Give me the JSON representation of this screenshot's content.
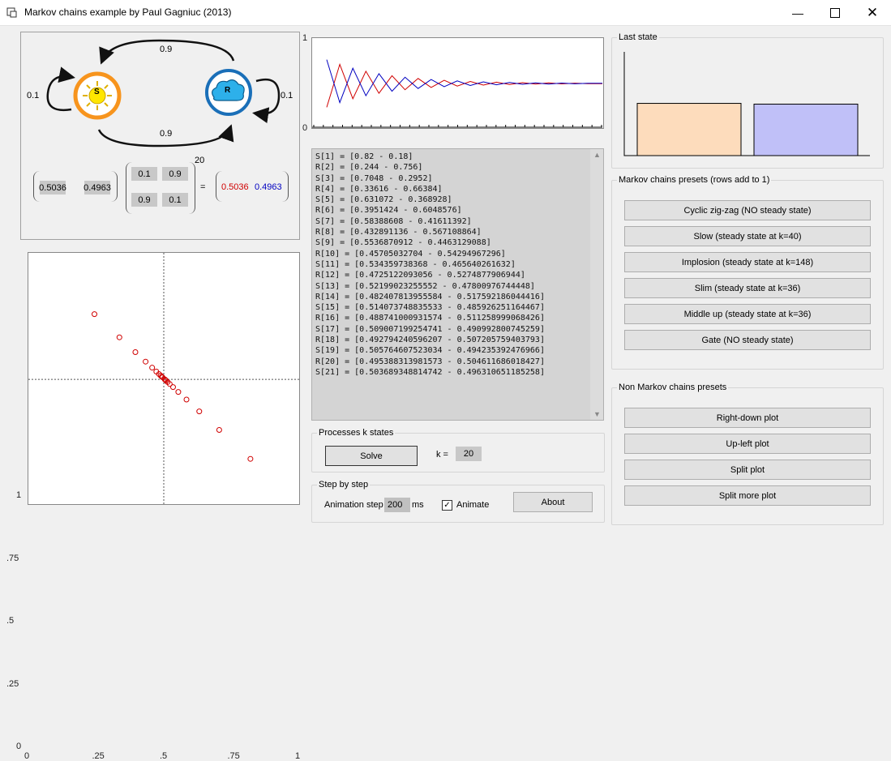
{
  "window": {
    "title": "Markov chains example by Paul Gagniuc (2013)"
  },
  "diagram": {
    "state_s": "S",
    "state_r": "R",
    "top_arrow": "0.9",
    "bottom_arrow": "0.9",
    "self_s": "0.1",
    "self_r": "0.1",
    "vec": [
      "0.5036",
      "0.4963"
    ],
    "matrix": [
      "0.1",
      "0.9",
      "0.9",
      "0.1"
    ],
    "power": "20",
    "equals": "=",
    "result": [
      "0.5036",
      "0.4963"
    ],
    "colors": {
      "s": "#f7941d",
      "r": "#1a6fb8",
      "result_s": "#d00000",
      "result_r": "#0000c0"
    }
  },
  "scatter": {
    "y_ticks": [
      "1",
      ".75",
      ".5",
      ".25",
      "0"
    ],
    "x_ticks": [
      "0",
      ".25",
      ".5",
      ".75",
      "1"
    ],
    "points": [
      [
        0.82,
        0.18
      ],
      [
        0.244,
        0.756
      ],
      [
        0.7048,
        0.2952
      ],
      [
        0.33616,
        0.66384
      ],
      [
        0.631072,
        0.368928
      ],
      [
        0.3951424,
        0.6048576
      ],
      [
        0.58388608,
        0.41611392
      ],
      [
        0.432891136,
        0.567108864
      ],
      [
        0.5536870912,
        0.4463129088
      ],
      [
        0.45705032704,
        0.54294967296
      ],
      [
        0.534359738368,
        0.465640261632
      ],
      [
        0.4725122093056,
        0.5274877906944
      ],
      [
        0.52199023255552,
        0.47800976744448
      ],
      [
        0.482407813955584,
        0.517592186044416
      ],
      [
        0.514073748835533,
        0.485926251164467
      ],
      [
        0.488741000931574,
        0.511258999068426
      ],
      [
        0.509007199254741,
        0.490992800745259
      ],
      [
        0.492794240596207,
        0.507205759403793
      ],
      [
        0.505764607523034,
        0.494235392476966
      ],
      [
        0.495388313981573,
        0.504611686018427
      ],
      [
        0.503689348814742,
        0.496310651185258
      ]
    ],
    "point_color": "#d00000"
  },
  "line_chart": {
    "y_top": "1",
    "y_bottom": "0",
    "series": [
      {
        "color": "#d00000",
        "values": [
          0.18,
          0.756,
          0.2952,
          0.66384,
          0.368928,
          0.6048576,
          0.41611392,
          0.567108864,
          0.4463129088,
          0.54294967296,
          0.465640261632,
          0.5274877906944,
          0.47800976744448,
          0.517592186044416,
          0.485926251164467,
          0.511258999068426,
          0.490992800745259,
          0.507205759403793,
          0.494235392476966,
          0.504611686018427,
          0.496310651185258
        ]
      },
      {
        "color": "#0000c0",
        "values": [
          0.82,
          0.244,
          0.7048,
          0.33616,
          0.631072,
          0.3951424,
          0.58388608,
          0.432891136,
          0.5536870912,
          0.45705032704,
          0.534359738368,
          0.4725122093056,
          0.52199023255552,
          0.482407813955584,
          0.514073748835533,
          0.488741000931574,
          0.509007199254741,
          0.492794240596207,
          0.505764607523034,
          0.495388313981573,
          0.503689348814742
        ]
      }
    ]
  },
  "console": {
    "lines": [
      "S[1] = [0.82 - 0.18]",
      "R[2] = [0.244 - 0.756]",
      "S[3] = [0.7048 - 0.2952]",
      "R[4] = [0.33616 - 0.66384]",
      "S[5] = [0.631072 - 0.368928]",
      "R[6] = [0.3951424 - 0.6048576]",
      "S[7] = [0.58388608 - 0.41611392]",
      "R[8] = [0.432891136 - 0.567108864]",
      "S[9] = [0.5536870912 - 0.4463129088]",
      "R[10] = [0.45705032704 - 0.54294967296]",
      "S[11] = [0.534359738368 - 0.465640261632]",
      "R[12] = [0.4725122093056 - 0.5274877906944]",
      "S[13] = [0.52199023255552 - 0.47800976744448]",
      "R[14] = [0.482407813955584 - 0.517592186044416]",
      "S[15] = [0.514073748835533 - 0.485926251164467]",
      "R[16] = [0.488741000931574 - 0.511258999068426]",
      "S[17] = [0.509007199254741 - 0.490992800745259]",
      "R[18] = [0.492794240596207 - 0.507205759403793]",
      "S[19] = [0.505764607523034 - 0.494235392476966]",
      "R[20] = [0.495388313981573 - 0.504611686018427]",
      "S[21] = [0.503689348814742 - 0.496310651185258]"
    ]
  },
  "processes": {
    "label": "Processes k states",
    "solve": "Solve",
    "k_label": "k =",
    "k_value": "20"
  },
  "step": {
    "label": "Step by step",
    "anim_label": "Animation step",
    "anim_value": "200",
    "ms": "ms",
    "animate": "Animate",
    "about": "About"
  },
  "last_state": {
    "label": "Last state",
    "bars": [
      0.5036,
      0.4963
    ],
    "colors": [
      "#fddcbc",
      "#c0c0f8"
    ]
  },
  "presets": {
    "label": "Markov chains presets (rows add to 1)",
    "buttons": [
      "Cyclic zig-zag (NO steady state)",
      "Slow (steady state at k=40)",
      "Implosion (steady state at k=148)",
      "Slim (steady state at k=36)",
      "Middle up (steady state at k=36)",
      "Gate (NO steady state)"
    ]
  },
  "non_presets": {
    "label": "Non Markov chains presets",
    "buttons": [
      "Right-down plot",
      "Up-left plot",
      "Split plot",
      "Split more plot"
    ]
  }
}
